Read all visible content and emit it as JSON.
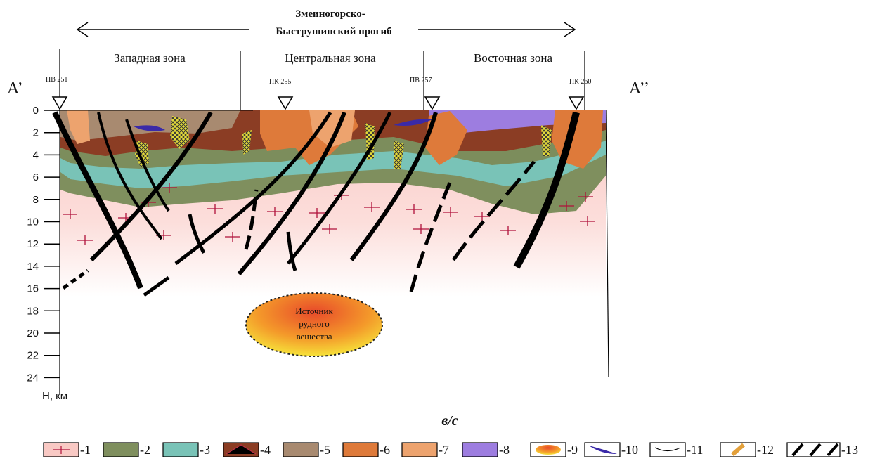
{
  "header": {
    "title_line1": "Змеиногорско-",
    "title_line2": "Быструшинский прогиб"
  },
  "zones": [
    "Западная зона",
    "Центральная зона",
    "Восточная зона"
  ],
  "profile_ends": [
    "A’",
    "A’’"
  ],
  "stations": [
    "ПВ 251",
    "ПК 255",
    "ПВ 257",
    "ПК 260"
  ],
  "depth_axis": {
    "ticks": [
      0,
      2,
      4,
      6,
      8,
      10,
      12,
      14,
      16,
      18,
      20,
      22,
      24
    ],
    "label": "H, км"
  },
  "source_label": [
    "Источник",
    "рудного",
    "вещества"
  ],
  "caption": "в/с",
  "legend": [
    "-1",
    "-2",
    "-3",
    "-4",
    "-5",
    "-6",
    "-7",
    "-8",
    "-9",
    "-10",
    "-11",
    "-12",
    "-13"
  ]
}
